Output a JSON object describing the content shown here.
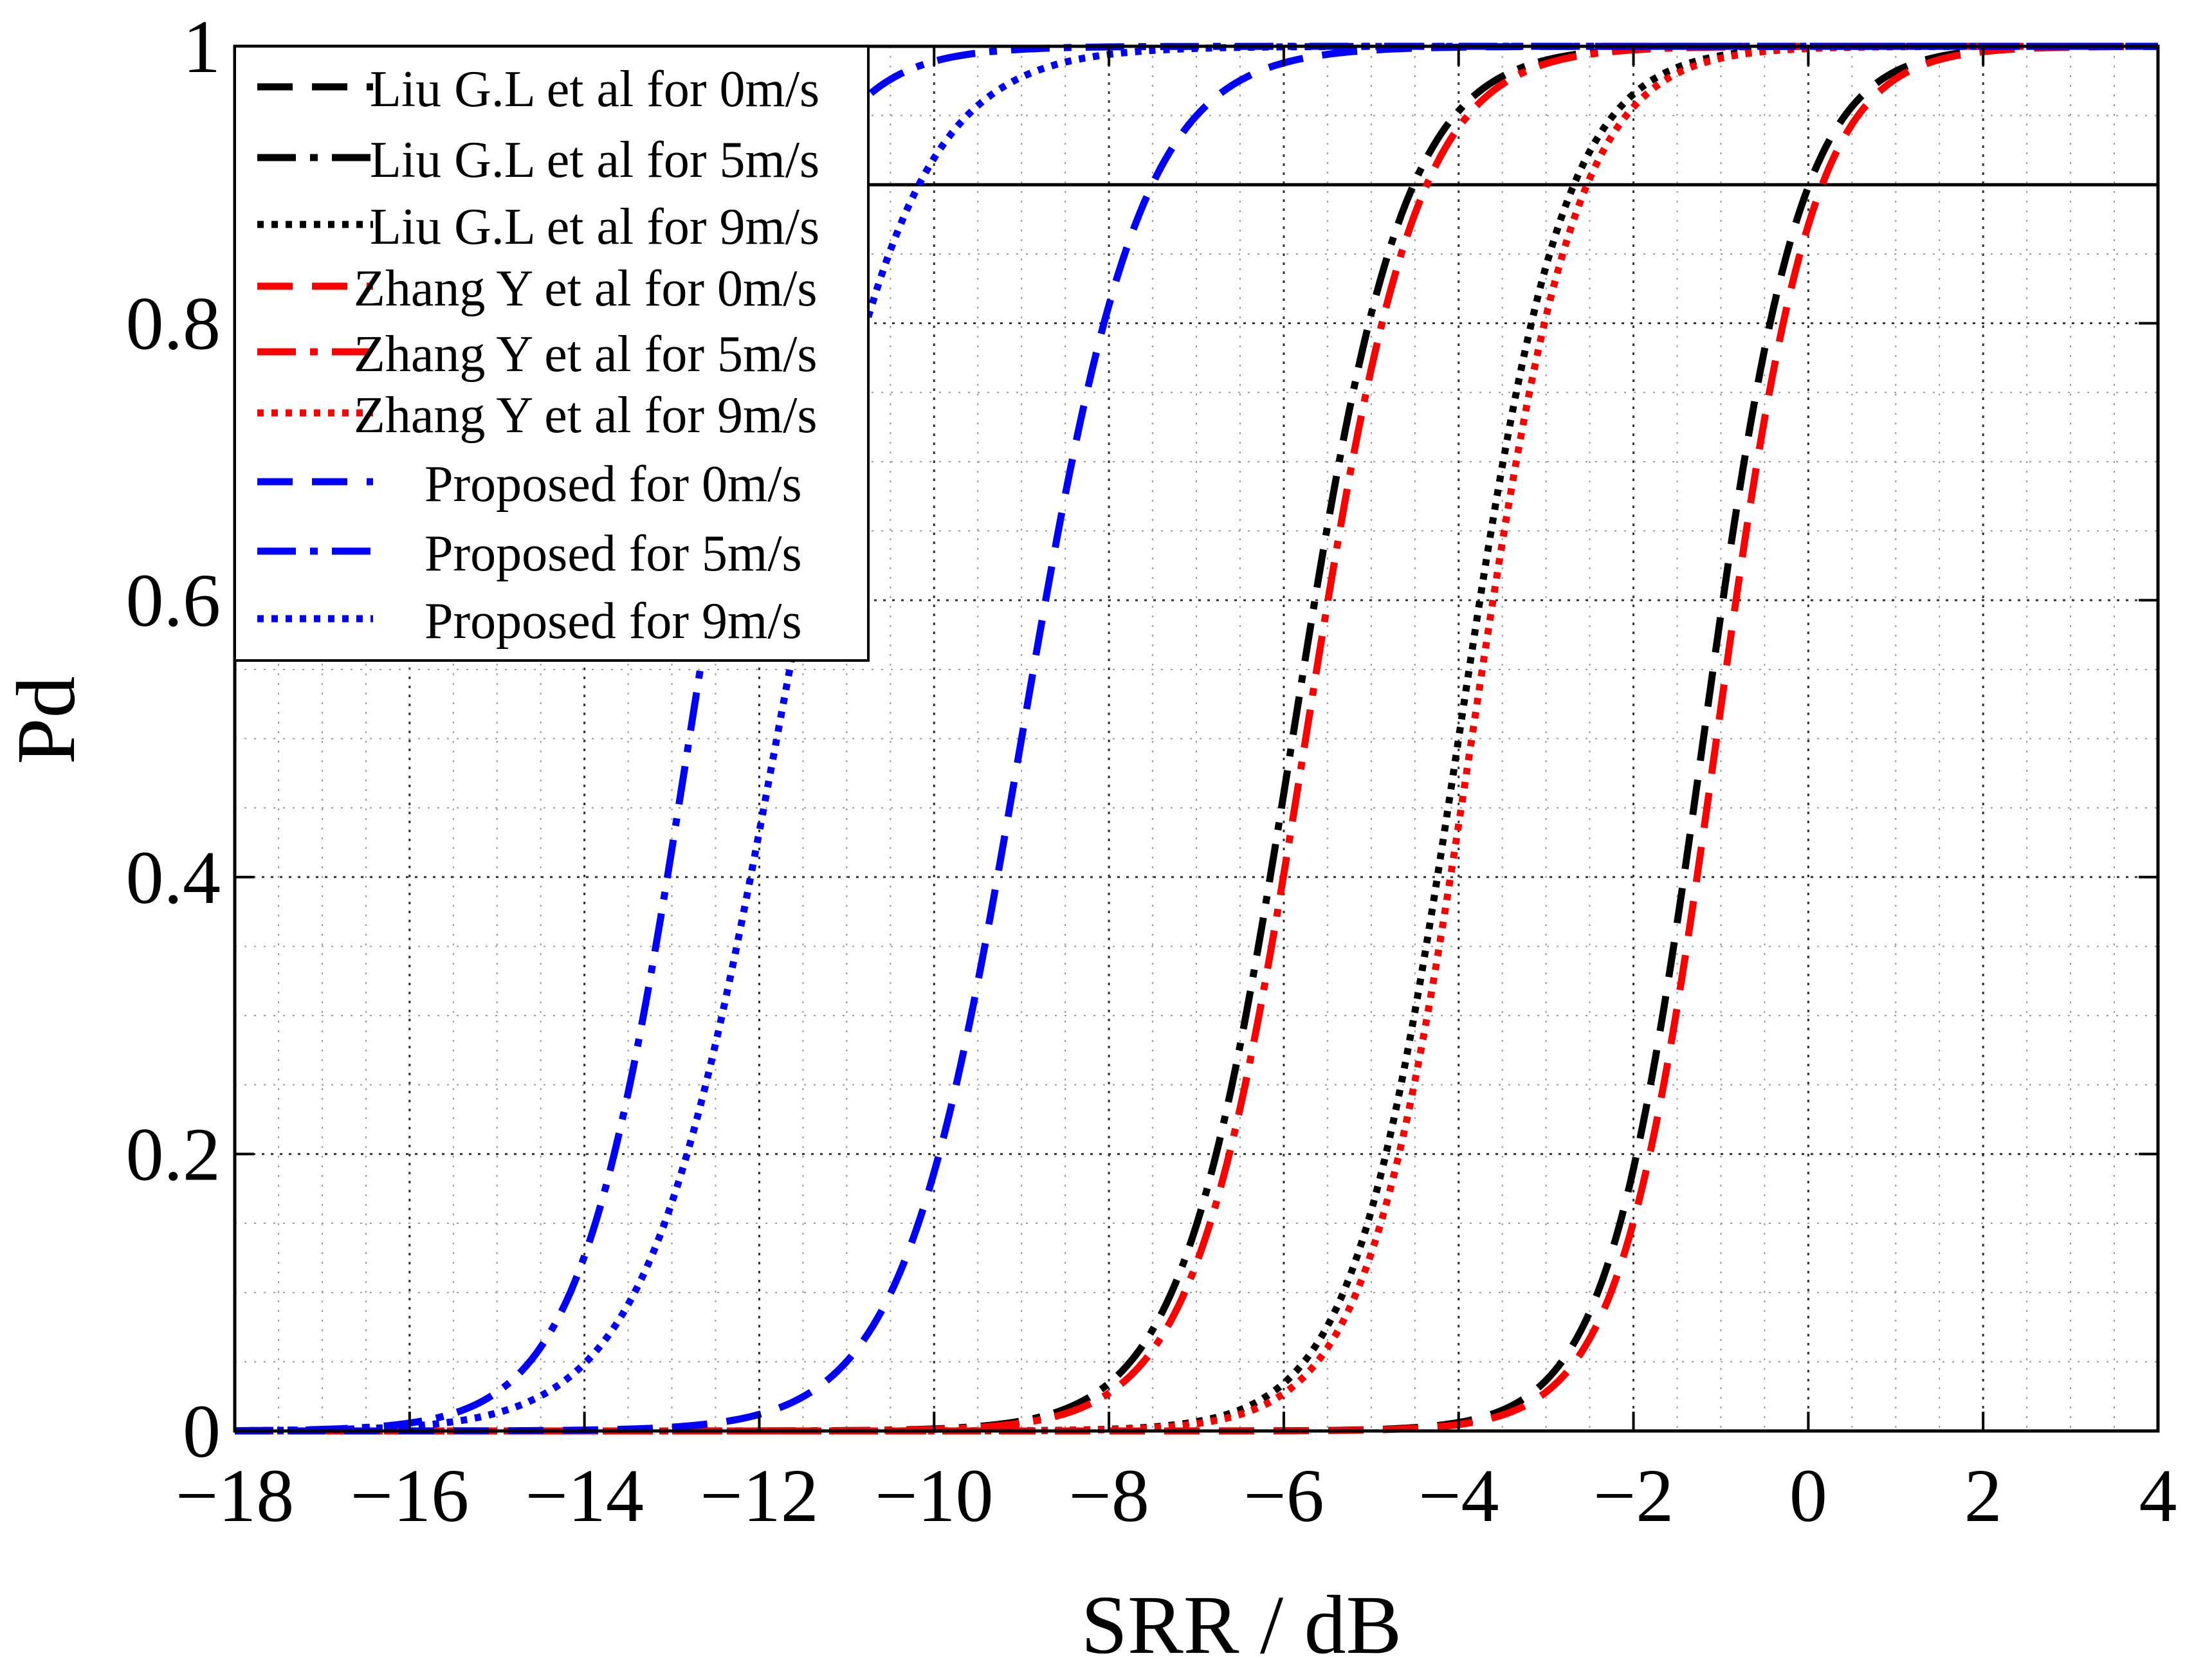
{
  "chart_data": {
    "type": "line",
    "xlabel": "SRR / dB",
    "ylabel": "Pd",
    "xlim": [
      -18,
      4
    ],
    "ylim": [
      0,
      1
    ],
    "grid": true,
    "legend_position": "top-left",
    "x_ticks": [
      -18,
      -16,
      -14,
      -12,
      -10,
      -8,
      -6,
      -4,
      -2,
      0,
      2,
      4
    ],
    "x_tick_labels": [
      "−18",
      "−16",
      "−14",
      "−12",
      "−10",
      "−8",
      "−6",
      "−4",
      "−2",
      "0",
      "2",
      "4"
    ],
    "y_ticks": [
      0,
      0.2,
      0.4,
      0.6,
      0.8,
      1
    ],
    "y_tick_labels": [
      "0",
      "0.2",
      "0.4",
      "0.6",
      "0.8",
      "1"
    ],
    "reference_line": {
      "y": 0.9
    },
    "series": [
      {
        "name": "Liu G.L et al for 0m/s",
        "color": "#000000",
        "style": "dashed",
        "midpoint": -1.2,
        "scale": 0.55
      },
      {
        "name": "Liu G.L et al for 5m/s",
        "color": "#000000",
        "style": "dashdot",
        "midpoint": -5.9,
        "scale": 0.63
      },
      {
        "name": "Liu G.L et al for 9m/s",
        "color": "#000000",
        "style": "dotted",
        "midpoint": -4.0,
        "scale": 0.6
      },
      {
        "name": "Zhang Y et al for 0m/s",
        "color": "#ff0000",
        "style": "dashed",
        "midpoint": -1.05,
        "scale": 0.55
      },
      {
        "name": "Zhang Y et al for 5m/s",
        "color": "#ff0000",
        "style": "dashdot",
        "midpoint": -5.75,
        "scale": 0.63
      },
      {
        "name": "Zhang Y et al for 9m/s",
        "color": "#ff0000",
        "style": "dotted",
        "midpoint": -3.85,
        "scale": 0.6
      },
      {
        "name": "Proposed for 0m/s",
        "color": "#0000ff",
        "style": "dashed",
        "midpoint": -9.0,
        "scale": 0.68
      },
      {
        "name": "Proposed for 5m/s",
        "color": "#0000ff",
        "style": "dashdot",
        "midpoint": -12.8,
        "scale": 0.62
      },
      {
        "name": "Proposed for 9m/s",
        "color": "#0000ff",
        "style": "dotted",
        "midpoint": -11.8,
        "scale": 0.74
      }
    ]
  }
}
